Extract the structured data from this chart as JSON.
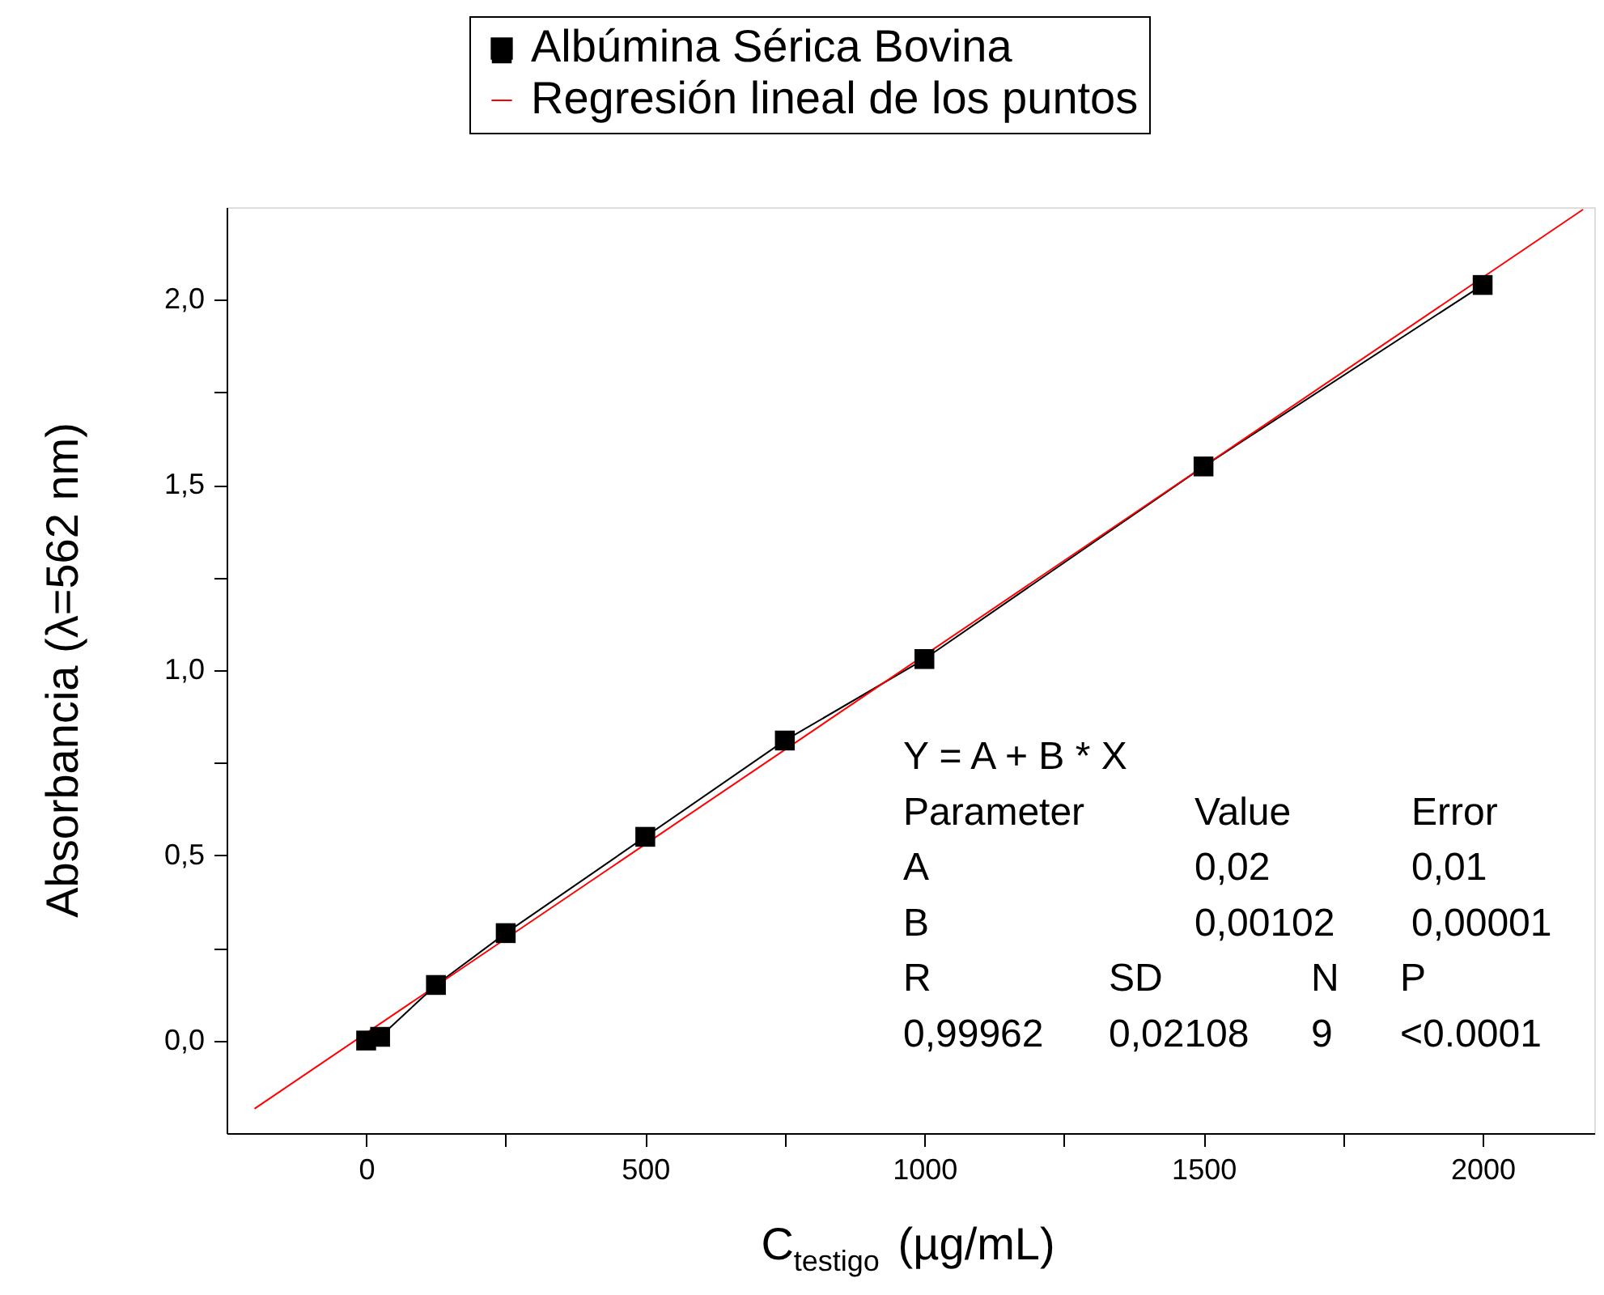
{
  "chart_data": {
    "type": "line",
    "xlabel": "C$_{testigo}$ (µg/mL)",
    "ylabel": "Absorbancia (λ=562 nm)",
    "x": [
      0,
      25,
      125,
      250,
      500,
      750,
      1000,
      1500,
      2000
    ],
    "series": [
      {
        "name": "Albúmina Sérica Bovina",
        "color": "#000000",
        "marker": "square",
        "values": [
          0.0,
          0.01,
          0.15,
          0.29,
          0.55,
          0.81,
          1.03,
          1.55,
          2.04
        ]
      },
      {
        "name": "Regresión lineal de los puntos",
        "color": "#ff0000",
        "marker": "none",
        "x": [
          -200,
          2180
        ],
        "values": [
          -0.184,
          2.244
        ]
      }
    ],
    "xlim": [
      -250,
      2200
    ],
    "ylim": [
      -0.25,
      2.25
    ],
    "xticks": [
      0,
      {
        "value": 250,
        "label": null
      },
      500,
      {
        "value": 750,
        "label": null
      },
      1000,
      {
        "value": 1250,
        "label": null
      },
      1500,
      {
        "value": 1750,
        "label": null
      },
      2000
    ],
    "yticks": [
      {
        "value": 0,
        "label": "0,0"
      },
      {
        "value": 0.25,
        "label": null
      },
      {
        "value": 0.5,
        "label": "0,5"
      },
      {
        "value": 0.75,
        "label": null
      },
      {
        "value": 1.0,
        "label": "1,0"
      },
      {
        "value": 1.25,
        "label": null
      },
      {
        "value": 1.5,
        "label": "1,5"
      },
      {
        "value": 1.75,
        "label": null
      },
      {
        "value": 2.0,
        "label": "2,0"
      }
    ],
    "legend": "top",
    "grid": false,
    "line_style": "solid",
    "annotations": [
      "Y = A + B * X",
      "Parameter",
      "Value",
      "Error",
      "A",
      "0,02",
      "0,01",
      "B",
      "0,00102",
      "0,00001",
      "R",
      "SD",
      "N",
      "P",
      "0,99962",
      "0,02108",
      "9",
      "<0.0001"
    ]
  }
}
